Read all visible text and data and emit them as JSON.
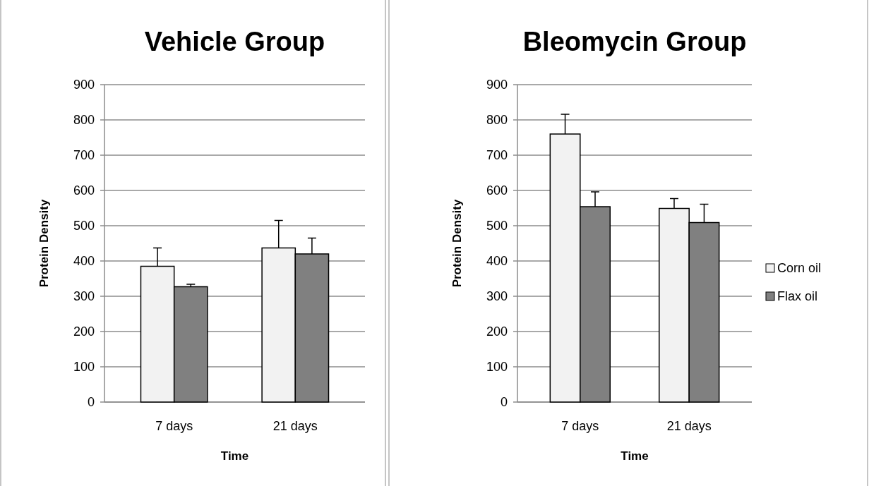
{
  "chart_data": [
    {
      "type": "bar",
      "title": "Vehicle Group",
      "xlabel": "Time",
      "ylabel": "Protein Density",
      "categories": [
        "7 days",
        "21 days"
      ],
      "series": [
        {
          "color": "#f2f2f2",
          "values": [
            385,
            437
          ],
          "errors": [
            [
              385,
              437
            ],
            [
              437,
              515
            ]
          ]
        },
        {
          "color": "#808080",
          "values": [
            327,
            420
          ],
          "errors": [
            [
              327,
              334
            ],
            [
              420,
              465
            ]
          ]
        }
      ],
      "ylim": [
        0,
        900
      ],
      "yticks": [
        0,
        100,
        200,
        300,
        400,
        500,
        600,
        700,
        800,
        900
      ],
      "grid": "y",
      "legend": false
    },
    {
      "type": "bar",
      "title": "Bleomycin Group",
      "xlabel": "Time",
      "ylabel": "Protein Density",
      "categories": [
        "7 days",
        "21 days"
      ],
      "series": [
        {
          "name": "Corn oil",
          "color": "#f2f2f2",
          "values": [
            760,
            549
          ],
          "errors": [
            [
              760,
              816
            ],
            [
              549,
              577
            ]
          ]
        },
        {
          "name": "Flax oil",
          "color": "#808080",
          "values": [
            554,
            509
          ],
          "errors": [
            [
              554,
              596
            ],
            [
              509,
              561
            ]
          ]
        }
      ],
      "ylim": [
        0,
        900
      ],
      "yticks": [
        0,
        100,
        200,
        300,
        400,
        500,
        600,
        700,
        800,
        900
      ],
      "grid": "y",
      "legend": "right"
    }
  ]
}
